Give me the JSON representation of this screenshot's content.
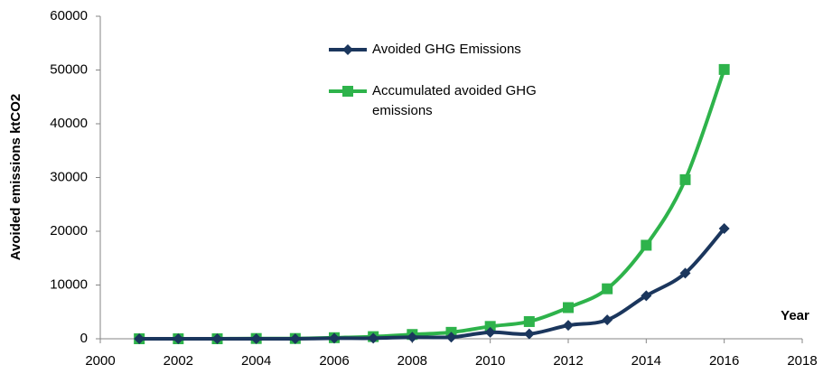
{
  "chart_data": {
    "type": "line",
    "y_label": "Avoided emissions ktCO2",
    "x_label": "Year",
    "x": [
      2001,
      2002,
      2003,
      2004,
      2005,
      2006,
      2007,
      2008,
      2009,
      2010,
      2011,
      2012,
      2013,
      2014,
      2015,
      2016
    ],
    "series": [
      {
        "name": "Avoided GHG Emissions",
        "color": "#1b365d",
        "marker": "diamond",
        "values": [
          0,
          0,
          0,
          0,
          0,
          100,
          100,
          300,
          300,
          1200,
          900,
          2500,
          3500,
          8000,
          12200,
          20500
        ]
      },
      {
        "name": "Accumulated avoided GHG emissions",
        "color": "#2eb34b",
        "marker": "square",
        "values": [
          0,
          0,
          0,
          50,
          50,
          200,
          400,
          800,
          1200,
          2300,
          3200,
          5800,
          9300,
          17400,
          29600,
          50100
        ]
      }
    ],
    "xlim": [
      2000,
      2018
    ],
    "xticks": [
      2000,
      2002,
      2004,
      2006,
      2008,
      2010,
      2012,
      2014,
      2016,
      2018
    ],
    "ylim": [
      0,
      60000
    ],
    "yticks": [
      0,
      10000,
      20000,
      30000,
      40000,
      50000,
      60000
    ],
    "smooth": true
  }
}
